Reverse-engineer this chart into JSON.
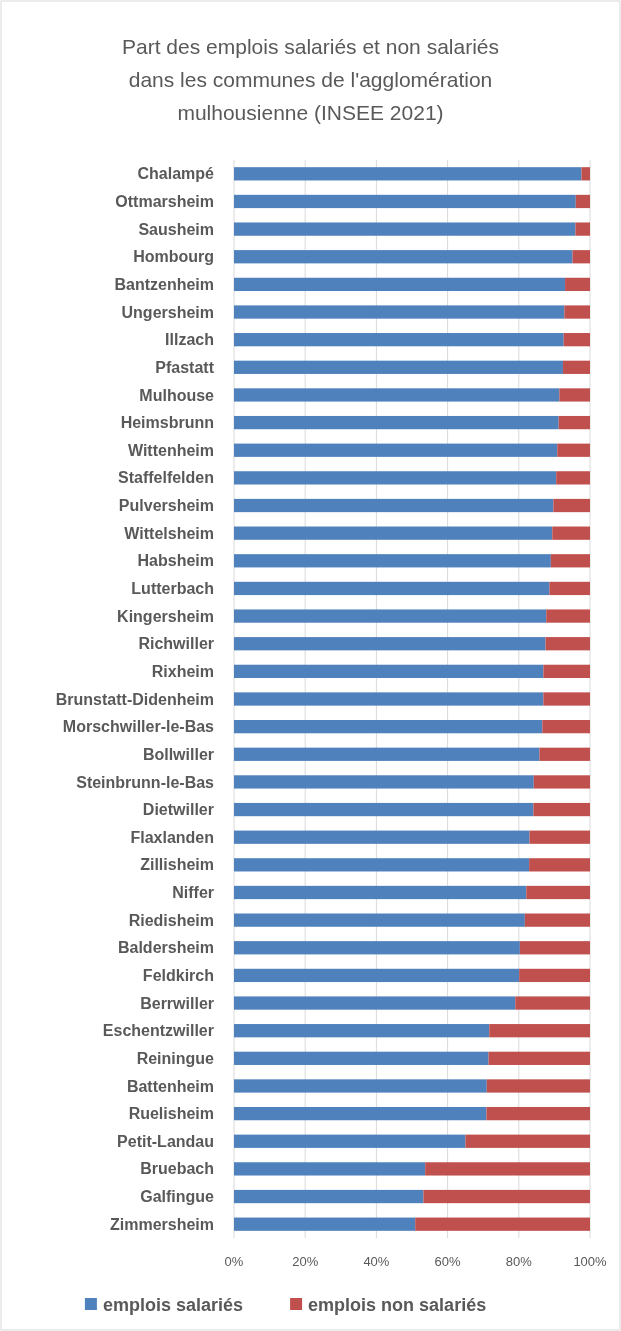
{
  "chart_data": {
    "type": "bar",
    "orientation": "horizontal",
    "stacked": true,
    "title": "Part des emplois salariés et non salariés dans les communes de l'agglomération mulhousienne (INSEE 2021)",
    "categories": [
      "Chalampé",
      "Ottmarsheim",
      "Sausheim",
      "Hombourg",
      "Bantzenheim",
      "Ungersheim",
      "Illzach",
      "Pfastatt",
      "Mulhouse",
      "Heimsbrunn",
      "Wittenheim",
      "Staffelfelden",
      "Pulversheim",
      "Wittelsheim",
      "Habsheim",
      "Lutterbach",
      "Kingersheim",
      "Richwiller",
      "Rixheim",
      "Brunstatt-Didenheim",
      "Morschwiller-le-Bas",
      "Bollwiller",
      "Steinbrunn-le-Bas",
      "Dietwiller",
      "Flaxlanden",
      "Zillisheim",
      "Niffer",
      "Riedisheim",
      "Baldersheim",
      "Feldkirch",
      "Berrwiller",
      "Eschentzwiller",
      "Reiningue",
      "Battenheim",
      "Ruelisheim",
      "Petit-Landau",
      "Bruebach",
      "Galfingue",
      "Zimmersheim"
    ],
    "series": [
      {
        "name": "emplois salariés",
        "color": "#4f81bd",
        "values": [
          97.6,
          96.0,
          95.9,
          95.1,
          93.0,
          92.8,
          92.6,
          92.4,
          91.4,
          91.2,
          90.8,
          90.5,
          89.7,
          89.4,
          89.0,
          88.6,
          87.7,
          87.5,
          86.9,
          86.9,
          86.6,
          85.8,
          84.2,
          84.1,
          83.0,
          82.9,
          82.1,
          81.7,
          80.3,
          80.1,
          79.0,
          71.7,
          71.5,
          71.0,
          70.9,
          65.0,
          53.7,
          53.2,
          50.9
        ]
      },
      {
        "name": "emplois non salariés",
        "color": "#c0504d",
        "values": [
          2.4,
          4.0,
          4.1,
          4.9,
          7.0,
          7.2,
          7.4,
          7.6,
          8.6,
          8.8,
          9.2,
          9.5,
          10.3,
          10.6,
          11.0,
          11.4,
          12.3,
          12.5,
          13.1,
          13.1,
          13.4,
          14.2,
          15.8,
          15.9,
          17.0,
          17.1,
          17.9,
          18.3,
          19.7,
          19.9,
          21.0,
          28.3,
          28.5,
          29.0,
          29.1,
          35.0,
          46.3,
          46.8,
          49.1
        ]
      }
    ],
    "xlim": [
      0,
      100
    ],
    "xticks": [
      {
        "value": 0,
        "label": "0%"
      },
      {
        "value": 20,
        "label": "20%"
      },
      {
        "value": 40,
        "label": "40%"
      },
      {
        "value": 60,
        "label": "60%"
      },
      {
        "value": 80,
        "label": "80%"
      },
      {
        "value": 100,
        "label": "100%"
      }
    ],
    "grid": "x",
    "legend": "bottom"
  }
}
